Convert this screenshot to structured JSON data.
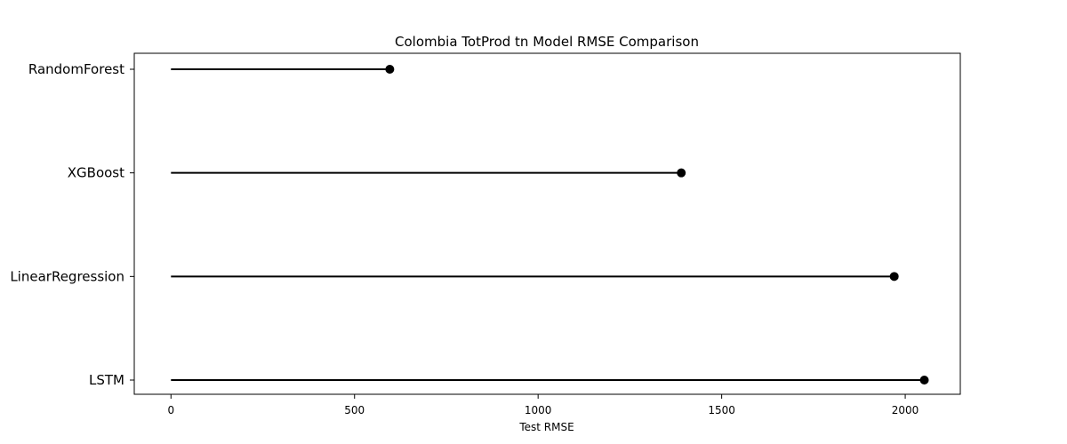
{
  "chart_data": {
    "type": "lollipop",
    "title": "Colombia TotProd tn Model RMSE Comparison",
    "xlabel": "Test RMSE",
    "ylabel": "",
    "categories": [
      "RandomForest",
      "XGBoost",
      "LinearRegression",
      "LSTM"
    ],
    "values": [
      596,
      1390,
      1970,
      2052
    ],
    "xlim": [
      -100,
      2150
    ],
    "xticks": [
      0,
      500,
      1000,
      1500,
      2000
    ],
    "grid": false,
    "colors": {
      "stem": "#000000",
      "marker": "#000000"
    }
  }
}
